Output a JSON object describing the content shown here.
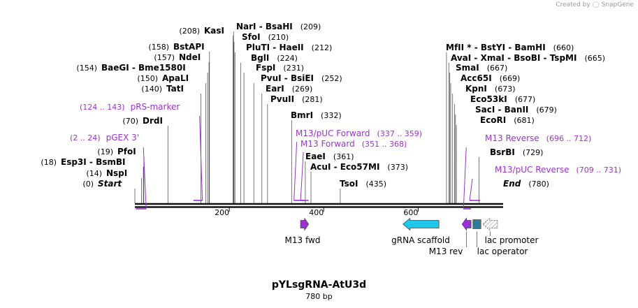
{
  "credit": {
    "prefix": "Created by",
    "logo_icon": "snapgene-logo-icon",
    "brand": "SnapGene"
  },
  "title": "pYLsgRNA-AtU3d",
  "length_label": "780 bp",
  "colors": {
    "enzyme": "#000000",
    "primer": "#9b30d9",
    "line": "#555555",
    "backbone": "#111111",
    "gRNA": "#1ec8ee",
    "lac_operator": "#2e7a99",
    "lac_promoter": "#ffffff"
  },
  "scale": {
    "length": 780,
    "ticks": [
      {
        "label": "200",
        "value": 200
      },
      {
        "label": "400",
        "value": 400
      },
      {
        "label": "600",
        "value": 600
      }
    ]
  },
  "enzymes": [
    {
      "name": "Start",
      "pos": 0,
      "pos_label": "(0)",
      "italic": true
    },
    {
      "name": "NspI",
      "pos": 14,
      "pos_label": "(14)"
    },
    {
      "name": "Esp3I - BsmBI",
      "pos": 18,
      "pos_label": "(18)"
    },
    {
      "name": "PfoI",
      "pos": 19,
      "pos_label": "(19)"
    },
    {
      "name": "DrdI",
      "pos": 70,
      "pos_label": "(70)"
    },
    {
      "name": "TatI",
      "pos": 140,
      "pos_label": "(140)"
    },
    {
      "name": "ApaLI",
      "pos": 150,
      "pos_label": "(150)"
    },
    {
      "name": "BaeGI - Bme1580I",
      "pos": 154,
      "pos_label": "(154)"
    },
    {
      "name": "NdeI",
      "pos": 157,
      "pos_label": "(157)"
    },
    {
      "name": "BstAPI",
      "pos": 158,
      "pos_label": "(158)"
    },
    {
      "name": "KasI",
      "pos": 208,
      "pos_label": "(208)"
    },
    {
      "name": "NarI - BsaHI",
      "pos": 209,
      "pos_label": "(209)"
    },
    {
      "name": "SfoI",
      "pos": 210,
      "pos_label": "(210)"
    },
    {
      "name": "PluTI - HaeII",
      "pos": 212,
      "pos_label": "(212)"
    },
    {
      "name": "BglI",
      "pos": 224,
      "pos_label": "(224)"
    },
    {
      "name": "FspI",
      "pos": 231,
      "pos_label": "(231)"
    },
    {
      "name": "PvuI - BsiEI",
      "pos": 252,
      "pos_label": "(252)"
    },
    {
      "name": "EarI",
      "pos": 269,
      "pos_label": "(269)"
    },
    {
      "name": "PvuII",
      "pos": 281,
      "pos_label": "(281)"
    },
    {
      "name": "BmrI",
      "pos": 332,
      "pos_label": "(332)"
    },
    {
      "name": "EaeI",
      "pos": 361,
      "pos_label": "(361)"
    },
    {
      "name": "AcuI - Eco57MI",
      "pos": 373,
      "pos_label": "(373)"
    },
    {
      "name": "TsoI",
      "pos": 435,
      "pos_label": "(435)"
    },
    {
      "name": "MfII * - BstYI - BamHI",
      "pos": 660,
      "pos_label": "(660)"
    },
    {
      "name": "AvaI - XmaI - BsoBI - TspMI",
      "pos": 665,
      "pos_label": "(665)"
    },
    {
      "name": "SmaI",
      "pos": 667,
      "pos_label": "(667)"
    },
    {
      "name": "Acc65I",
      "pos": 669,
      "pos_label": "(669)"
    },
    {
      "name": "KpnI",
      "pos": 673,
      "pos_label": "(673)"
    },
    {
      "name": "Eco53kI",
      "pos": 677,
      "pos_label": "(677)"
    },
    {
      "name": "SacI - BanII",
      "pos": 679,
      "pos_label": "(679)"
    },
    {
      "name": "EcoRI",
      "pos": 681,
      "pos_label": "(681)"
    },
    {
      "name": "BsrBI",
      "pos": 729,
      "pos_label": "(729)"
    },
    {
      "name": "End",
      "pos": 780,
      "pos_label": "(780)",
      "italic": true
    }
  ],
  "primers": [
    {
      "name": "pGEX 3'",
      "start": 2,
      "end": 24,
      "range_label": "(2 .. 24)"
    },
    {
      "name": "pRS-marker",
      "start": 124,
      "end": 143,
      "range_label": "(124 .. 143)"
    },
    {
      "name": "M13/pUC Forward",
      "start": 337,
      "end": 359,
      "range_label": "(337 .. 359)"
    },
    {
      "name": "M13 Forward",
      "start": 351,
      "end": 368,
      "range_label": "(351 .. 368)"
    },
    {
      "name": "M13 Reverse",
      "start": 696,
      "end": 712,
      "range_label": "(696 .. 712)"
    },
    {
      "name": "M13/pUC Reverse",
      "start": 709,
      "end": 731,
      "range_label": "(709 .. 731)"
    }
  ],
  "features": [
    {
      "name": "M13 fwd",
      "start": 351,
      "end": 368,
      "direction": "right",
      "color": "#9b30d9",
      "shape": "arrow"
    },
    {
      "name": "gRNA scaffold",
      "start": 568,
      "end": 644,
      "direction": "left",
      "color": "#1ec8ee",
      "shape": "arrow"
    },
    {
      "name": "M13 rev",
      "start": 693,
      "end": 712,
      "direction": "left",
      "color": "#9b30d9",
      "shape": "arrow"
    },
    {
      "name": "lac operator",
      "start": 716,
      "end": 733,
      "direction": "none",
      "color": "#2e7a99",
      "shape": "box"
    },
    {
      "name": "lac promoter",
      "start": 737,
      "end": 768,
      "direction": "left",
      "color": "#ffffff",
      "shape": "arrow-hatched"
    }
  ]
}
